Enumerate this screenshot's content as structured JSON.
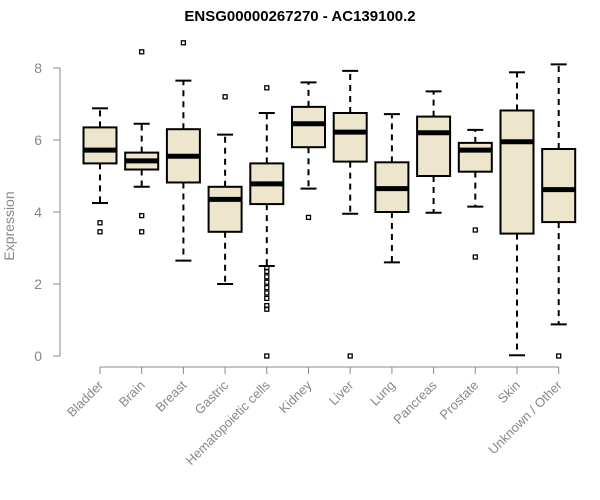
{
  "chart_data": {
    "type": "boxplot",
    "title": "ENSG00000267270 - AC139100.2",
    "xlabel": "",
    "ylabel": "Expression",
    "ylim": [
      0,
      8.6
    ],
    "yticks": [
      0,
      2,
      4,
      6,
      8
    ],
    "box_fill": "#EDE6CC",
    "box_stroke": "#000000",
    "axis_color": "#888888",
    "categories": [
      "Bladder",
      "Brain",
      "Breast",
      "Gastric",
      "Hematopoietic cells",
      "Kidney",
      "Liver",
      "Lung",
      "Pancreas",
      "Prostate",
      "Skin",
      "Unknown / Other"
    ],
    "boxes": [
      {
        "label": "Bladder",
        "whisker_low": 4.25,
        "q1": 5.35,
        "median": 5.72,
        "q3": 6.35,
        "whisker_high": 6.88,
        "outliers": [
          3.45,
          3.7
        ]
      },
      {
        "label": "Brain",
        "whisker_low": 4.7,
        "q1": 5.18,
        "median": 5.42,
        "q3": 5.65,
        "whisker_high": 6.45,
        "outliers": [
          3.45,
          3.9,
          8.45
        ]
      },
      {
        "label": "Breast",
        "whisker_low": 2.65,
        "q1": 4.82,
        "median": 5.55,
        "q3": 6.3,
        "whisker_high": 7.65,
        "outliers": [
          8.7
        ]
      },
      {
        "label": "Gastric",
        "whisker_low": 2.0,
        "q1": 3.45,
        "median": 4.35,
        "q3": 4.7,
        "whisker_high": 6.15,
        "outliers": [
          7.2
        ]
      },
      {
        "label": "Hematopoietic cells",
        "whisker_low": 2.5,
        "q1": 4.22,
        "median": 4.78,
        "q3": 5.35,
        "whisker_high": 6.75,
        "outliers": [
          0.0,
          1.3,
          1.4,
          1.6,
          1.75,
          1.9,
          2.05,
          2.2,
          2.35,
          2.45,
          7.45
        ]
      },
      {
        "label": "Kidney",
        "whisker_low": 4.65,
        "q1": 5.8,
        "median": 6.45,
        "q3": 6.92,
        "whisker_high": 7.6,
        "outliers": [
          3.85
        ]
      },
      {
        "label": "Liver",
        "whisker_low": 3.95,
        "q1": 5.4,
        "median": 6.22,
        "q3": 6.75,
        "whisker_high": 7.92,
        "outliers": [
          0.0
        ]
      },
      {
        "label": "Lung",
        "whisker_low": 2.6,
        "q1": 4.0,
        "median": 4.65,
        "q3": 5.38,
        "whisker_high": 6.72,
        "outliers": []
      },
      {
        "label": "Pancreas",
        "whisker_low": 3.98,
        "q1": 5.0,
        "median": 6.2,
        "q3": 6.65,
        "whisker_high": 7.35,
        "outliers": []
      },
      {
        "label": "Prostate",
        "whisker_low": 4.15,
        "q1": 5.12,
        "median": 5.72,
        "q3": 5.92,
        "whisker_high": 6.28,
        "outliers": [
          2.75,
          3.5
        ]
      },
      {
        "label": "Skin",
        "whisker_low": 0.02,
        "q1": 3.4,
        "median": 5.95,
        "q3": 6.82,
        "whisker_high": 7.88,
        "outliers": []
      },
      {
        "label": "Unknown / Other",
        "whisker_low": 0.88,
        "q1": 3.72,
        "median": 4.62,
        "q3": 5.75,
        "whisker_high": 8.1,
        "outliers": [
          0.0
        ]
      }
    ]
  }
}
